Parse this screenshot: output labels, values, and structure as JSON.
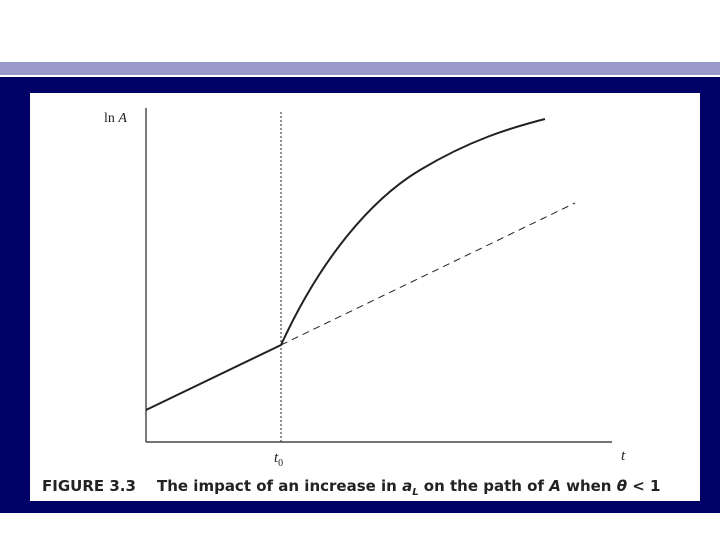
{
  "figure": {
    "y_axis_label": {
      "prefix": "ln",
      "variable": "A"
    },
    "x_axis_label": "t",
    "marker_label": {
      "base": "t",
      "subscript": "0"
    },
    "caption": {
      "number": "FIGURE 3.3",
      "parts": [
        "The impact of an increase in ",
        "a",
        "L",
        " on the path of ",
        "A",
        " when ",
        "θ",
        " < 1"
      ]
    }
  }
}
